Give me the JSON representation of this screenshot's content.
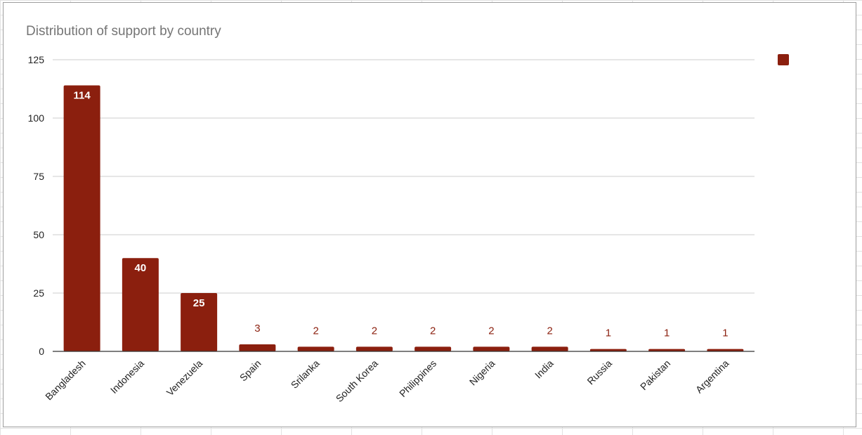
{
  "chart_data": {
    "type": "bar",
    "title": "Distribution of support by country",
    "categories": [
      "Bangladesh",
      "Indonesia",
      "Venezuela",
      "Spain",
      "Srilanka",
      "South Korea",
      "Philippines",
      "Nigeria",
      "India",
      "Russia",
      "Pakistan",
      "Argentina"
    ],
    "values": [
      114,
      40,
      25,
      3,
      2,
      2,
      2,
      2,
      2,
      1,
      1,
      1
    ],
    "yticks": [
      0,
      25,
      50,
      75,
      100,
      125
    ],
    "ylim": [
      0,
      125
    ],
    "grid": true,
    "legend": "right",
    "xlabel": "",
    "ylabel": "",
    "colors": {
      "bar": "#8b1f0e",
      "label_inside": "#ffffff",
      "label_outside": "#8b1f0e",
      "grid": "#cccccc",
      "axis": "#333333"
    }
  }
}
